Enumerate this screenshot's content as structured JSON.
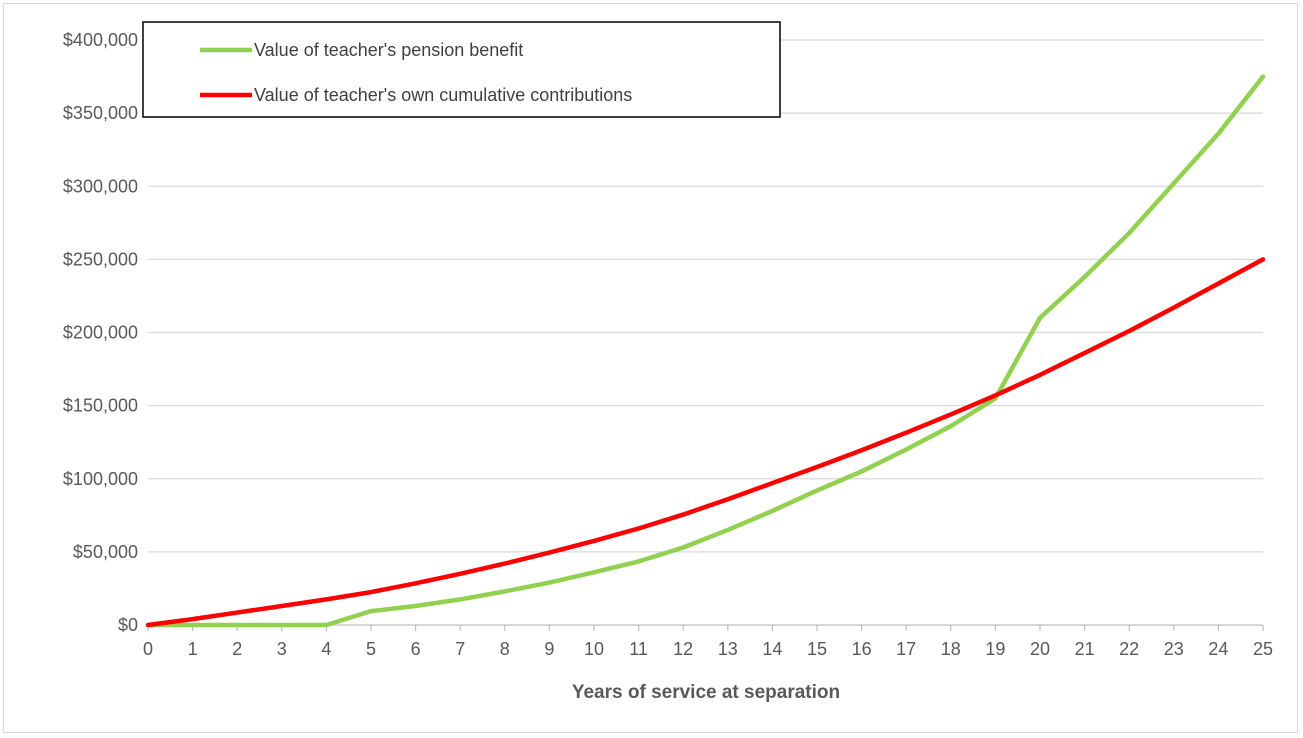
{
  "chart_data": {
    "type": "line",
    "title": "",
    "xlabel": "Years of service at separation",
    "ylabel": "",
    "x": [
      0,
      1,
      2,
      3,
      4,
      5,
      6,
      7,
      8,
      9,
      10,
      11,
      12,
      13,
      14,
      15,
      16,
      17,
      18,
      19,
      20,
      21,
      22,
      23,
      24,
      25
    ],
    "ylim": [
      0,
      400000
    ],
    "yticks": [
      0,
      50000,
      100000,
      150000,
      200000,
      250000,
      300000,
      350000,
      400000
    ],
    "ytick_labels": [
      "$0",
      "$50,000",
      "$100,000",
      "$150,000",
      "$200,000",
      "$250,000",
      "$300,000",
      "$350,000",
      "$400,000"
    ],
    "grid": "horizontal",
    "legend_position": "top-left",
    "series": [
      {
        "name": "Value of teacher's pension benefit",
        "color": "#92d050",
        "values": [
          0,
          0,
          0,
          0,
          0,
          9500,
          13000,
          17500,
          23000,
          29000,
          36000,
          43500,
          53000,
          65000,
          78000,
          92000,
          105000,
          120000,
          136000,
          155000,
          210000,
          238000,
          268000,
          302000,
          336000,
          375000
        ]
      },
      {
        "name": "Value of teacher's own cumulative contributions",
        "color": "#ff0000",
        "values": [
          0,
          4000,
          8500,
          13000,
          17500,
          22500,
          28500,
          35000,
          42000,
          49500,
          57500,
          66000,
          75500,
          86000,
          97000,
          108000,
          119500,
          131500,
          144000,
          157000,
          171000,
          186000,
          201000,
          217000,
          233500,
          250000
        ]
      }
    ]
  }
}
